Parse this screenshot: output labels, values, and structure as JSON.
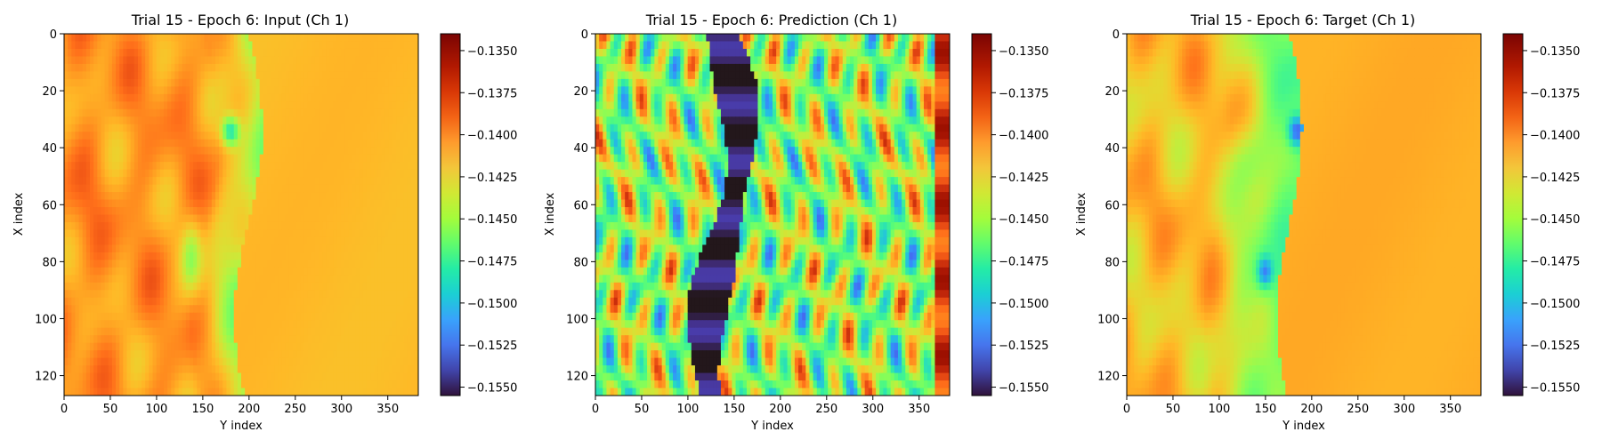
{
  "chart_data": [
    {
      "type": "heatmap",
      "title": "Trial 15 - Epoch 6: Input (Ch 1)",
      "xlabel": "Y index",
      "ylabel": "X index",
      "xlim": [
        0,
        383
      ],
      "ylim": [
        127,
        0
      ],
      "x_ticks": [
        0,
        50,
        100,
        150,
        200,
        250,
        300,
        350
      ],
      "y_ticks": [
        0,
        20,
        40,
        60,
        80,
        100,
        120
      ],
      "colorbar": {
        "vmin": -0.1555,
        "vmax": -0.134,
        "ticks": [
          -0.135,
          -0.1375,
          -0.14,
          -0.1425,
          -0.145,
          -0.1475,
          -0.15,
          -0.1525,
          -0.155
        ],
        "tick_labels": [
          "−0.1350",
          "−0.1375",
          "−0.1400",
          "−0.1425",
          "−0.1450",
          "−0.1475",
          "−0.1500",
          "−0.1525",
          "−0.1550"
        ],
        "colormap": "turbo"
      }
    },
    {
      "type": "heatmap",
      "title": "Trial 15 - Epoch 6: Prediction (Ch 1)",
      "xlabel": "Y index",
      "ylabel": "X index",
      "xlim": [
        0,
        383
      ],
      "ylim": [
        127,
        0
      ],
      "x_ticks": [
        0,
        50,
        100,
        150,
        200,
        250,
        300,
        350
      ],
      "y_ticks": [
        0,
        20,
        40,
        60,
        80,
        100,
        120
      ],
      "colorbar": {
        "vmin": -0.1555,
        "vmax": -0.134,
        "ticks": [
          -0.135,
          -0.1375,
          -0.14,
          -0.1425,
          -0.145,
          -0.1475,
          -0.15,
          -0.1525,
          -0.155
        ],
        "tick_labels": [
          "−0.1350",
          "−0.1375",
          "−0.1400",
          "−0.1425",
          "−0.1450",
          "−0.1475",
          "−0.1500",
          "−0.1525",
          "−0.1550"
        ],
        "colormap": "turbo"
      }
    },
    {
      "type": "heatmap",
      "title": "Trial 15 - Epoch 6: Target (Ch 1)",
      "xlabel": "Y index",
      "ylabel": "X index",
      "xlim": [
        0,
        383
      ],
      "ylim": [
        127,
        0
      ],
      "x_ticks": [
        0,
        50,
        100,
        150,
        200,
        250,
        300,
        350
      ],
      "y_ticks": [
        0,
        20,
        40,
        60,
        80,
        100,
        120
      ],
      "colorbar": {
        "vmin": -0.1555,
        "vmax": -0.134,
        "ticks": [
          -0.135,
          -0.1375,
          -0.14,
          -0.1425,
          -0.145,
          -0.1475,
          -0.15,
          -0.1525,
          -0.155
        ],
        "tick_labels": [
          "−0.1350",
          "−0.1375",
          "−0.1400",
          "−0.1425",
          "−0.1450",
          "−0.1475",
          "−0.1500",
          "−0.1525",
          "−0.1550"
        ],
        "colormap": "turbo"
      }
    }
  ]
}
